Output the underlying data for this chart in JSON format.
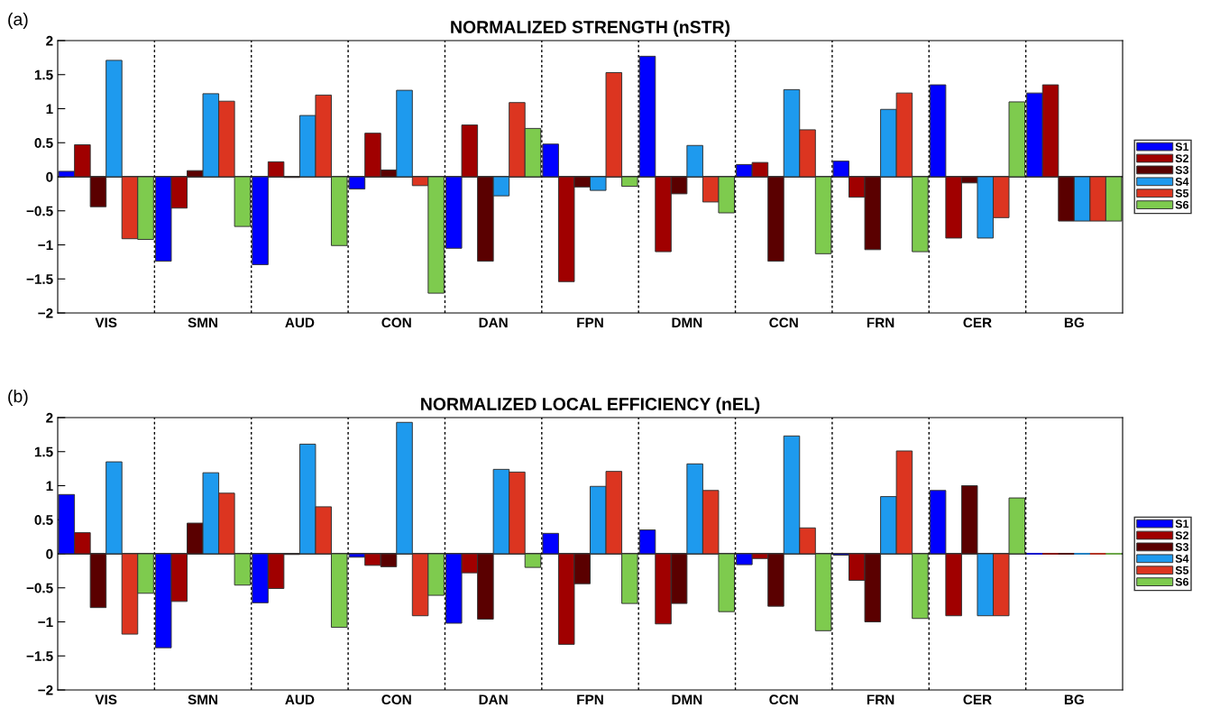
{
  "chart_data": [
    {
      "type": "bar",
      "title": "NORMALIZED STRENGTH (nSTR)",
      "annotations": [
        "(a)"
      ],
      "categories": [
        "VIS",
        "SMN",
        "AUD",
        "CON",
        "DAN",
        "FPN",
        "DMN",
        "CCN",
        "FRN",
        "CER",
        "BG"
      ],
      "series": [
        {
          "name": "S1",
          "color": "#0000ff",
          "values": [
            0.08,
            -1.24,
            -1.29,
            -0.18,
            -1.05,
            0.48,
            1.77,
            0.18,
            0.23,
            1.35,
            1.23
          ]
        },
        {
          "name": "S2",
          "color": "#a00000",
          "values": [
            0.47,
            -0.46,
            0.22,
            0.64,
            0.76,
            -1.54,
            -1.1,
            0.21,
            -0.3,
            -0.9,
            1.35
          ]
        },
        {
          "name": "S3",
          "color": "#5a0000",
          "values": [
            -0.44,
            0.09,
            -0.01,
            0.1,
            -1.24,
            -0.15,
            -0.25,
            -1.24,
            -1.07,
            -0.09,
            -0.65
          ]
        },
        {
          "name": "S4",
          "color": "#1e9aee",
          "values": [
            1.71,
            1.22,
            0.9,
            1.27,
            -0.28,
            -0.2,
            0.46,
            1.28,
            0.99,
            -0.9,
            -0.65
          ]
        },
        {
          "name": "S5",
          "color": "#dc3520",
          "values": [
            -0.91,
            1.11,
            1.2,
            -0.13,
            1.09,
            1.53,
            -0.37,
            0.69,
            1.23,
            -0.6,
            -0.65
          ]
        },
        {
          "name": "S6",
          "color": "#7ecb4e",
          "values": [
            -0.92,
            -0.73,
            -1.01,
            -1.71,
            0.71,
            -0.14,
            -0.53,
            -1.13,
            -1.1,
            1.1,
            -0.65
          ]
        }
      ],
      "ylim": [
        -2,
        2
      ],
      "yticks": [
        {
          "value": -2,
          "label": "−2"
        },
        {
          "value": -1.5,
          "label": "−1.5"
        },
        {
          "value": -1,
          "label": "−1"
        },
        {
          "value": -0.5,
          "label": "−0.5"
        },
        0,
        0.5,
        1,
        1.5,
        2
      ],
      "grid": "x",
      "legend": "right"
    },
    {
      "type": "bar",
      "title": "NORMALIZED LOCAL EFFICIENCY (nEL)",
      "annotations": [
        "(b)"
      ],
      "categories": [
        "VIS",
        "SMN",
        "AUD",
        "CON",
        "DAN",
        "FPN",
        "DMN",
        "CCN",
        "FRN",
        "CER",
        "BG"
      ],
      "series": [
        {
          "name": "S1",
          "color": "#0000ff",
          "values": [
            0.87,
            -1.38,
            -0.72,
            -0.05,
            -1.02,
            0.3,
            0.35,
            -0.16,
            -0.02,
            0.93,
            0
          ]
        },
        {
          "name": "S2",
          "color": "#a00000",
          "values": [
            0.31,
            -0.7,
            -0.51,
            -0.17,
            -0.28,
            -1.33,
            -1.03,
            -0.07,
            -0.39,
            -0.91,
            0
          ]
        },
        {
          "name": "S3",
          "color": "#5a0000",
          "values": [
            -0.79,
            0.45,
            -0.01,
            -0.19,
            -0.96,
            -0.44,
            -0.73,
            -0.77,
            -1.0,
            1.0,
            0
          ]
        },
        {
          "name": "S4",
          "color": "#1e9aee",
          "values": [
            1.35,
            1.19,
            1.61,
            1.93,
            1.24,
            0.99,
            1.32,
            1.73,
            0.84,
            -0.91,
            0
          ]
        },
        {
          "name": "S5",
          "color": "#dc3520",
          "values": [
            -1.18,
            0.89,
            0.69,
            -0.91,
            1.2,
            1.21,
            0.93,
            0.38,
            1.51,
            -0.91,
            0
          ]
        },
        {
          "name": "S6",
          "color": "#7ecb4e",
          "values": [
            -0.58,
            -0.46,
            -1.08,
            -0.61,
            -0.2,
            -0.73,
            -0.85,
            -1.13,
            -0.95,
            0.82,
            0
          ]
        }
      ],
      "ylim": [
        -2,
        2
      ],
      "yticks": [
        {
          "value": -2,
          "label": "−2"
        },
        {
          "value": -1.5,
          "label": "−1.5"
        },
        {
          "value": -1,
          "label": "−1"
        },
        {
          "value": -0.5,
          "label": "−0.5"
        },
        0,
        0.5,
        1,
        1.5,
        2
      ],
      "grid": "x",
      "legend": "right"
    }
  ]
}
